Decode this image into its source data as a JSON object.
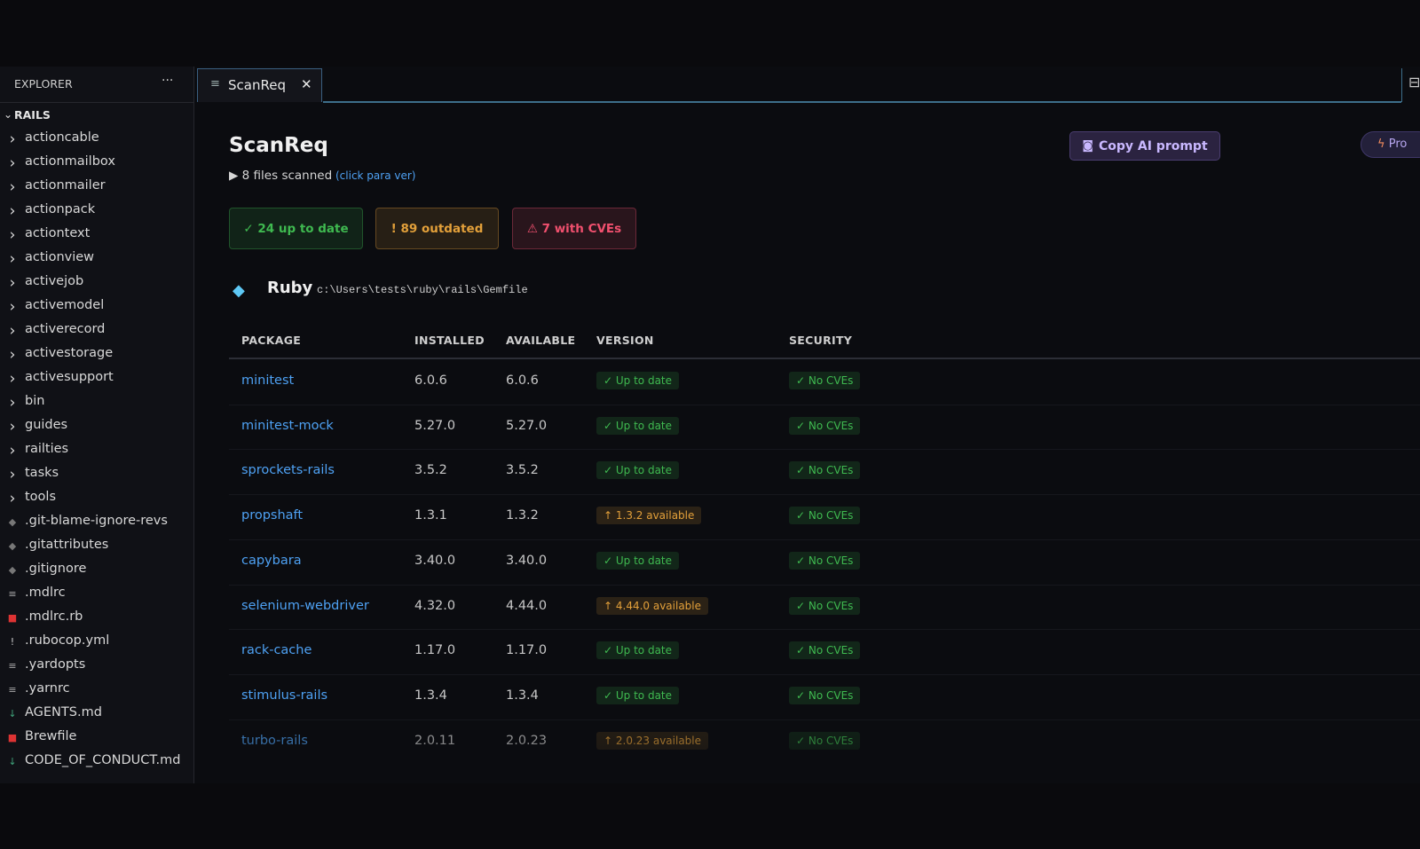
{
  "sidebar": {
    "title": "EXPLORER",
    "more": "···",
    "root": "RAILS",
    "items": [
      "actioncable",
      "actionmailbox",
      "actionmailer",
      "actionpack",
      "actiontext",
      "actionview",
      "activejob",
      "activemodel",
      "activerecord",
      "activestorage",
      "activesupport",
      "bin",
      "guides",
      "railties",
      "tasks",
      "tools",
      ".git-blame-ignore-revs",
      ".gitattributes",
      ".gitignore",
      ".mdlrc",
      ".mdlrc.rb",
      ".rubocop.yml",
      ".yardopts",
      ".yarnrc",
      "AGENTS.md",
      "Brewfile",
      "CODE_OF_CONDUCT.md"
    ]
  },
  "tab": {
    "label": "ScanReq",
    "close": "✕"
  },
  "header": {
    "title": "ScanReq",
    "scanned": "▶ 8 files scanned",
    "link": "(click para ver)",
    "copy_button": "Copy AI prompt",
    "pro_button": "Pro"
  },
  "summary": [
    {
      "label": "✓ 24 up to date",
      "color": "#3fb950"
    },
    {
      "label": "! 89 outdated",
      "color": "#e3a03a"
    },
    {
      "label": "⚠ 7 with CVEs",
      "color": "#f0506e"
    }
  ],
  "section": {
    "title": "Ruby",
    "path": "c:\\Users\\tests\\ruby\\rails\\Gemfile"
  },
  "table": {
    "columns": [
      "PACKAGE",
      "INSTALLED",
      "AVAILABLE",
      "VERSION",
      "SECURITY"
    ],
    "rows": [
      [
        "minitest",
        "6.0.6",
        "6.0.6",
        {
          "label": "✓ Up to date",
          "color": "#3fb950"
        },
        {
          "label": "✓ No CVEs",
          "color": "#3fb950"
        }
      ],
      [
        "minitest-mock",
        "5.27.0",
        "5.27.0",
        {
          "label": "✓ Up to date",
          "color": "#3fb950"
        },
        {
          "label": "✓ No CVEs",
          "color": "#3fb950"
        }
      ],
      [
        "sprockets-rails",
        "3.5.2",
        "3.5.2",
        {
          "label": "✓ Up to date",
          "color": "#3fb950"
        },
        {
          "label": "✓ No CVEs",
          "color": "#3fb950"
        }
      ],
      [
        "propshaft",
        "1.3.1",
        "1.3.2",
        {
          "label": "↑ 1.3.2 available",
          "color": "#e3a03a"
        },
        {
          "label": "✓ No CVEs",
          "color": "#3fb950"
        }
      ],
      [
        "capybara",
        "3.40.0",
        "3.40.0",
        {
          "label": "✓ Up to date",
          "color": "#3fb950"
        },
        {
          "label": "✓ No CVEs",
          "color": "#3fb950"
        }
      ],
      [
        "selenium-webdriver",
        "4.32.0",
        "4.44.0",
        {
          "label": "↑ 4.44.0 available",
          "color": "#e3a03a"
        },
        {
          "label": "✓ No CVEs",
          "color": "#3fb950"
        }
      ],
      [
        "rack-cache",
        "1.17.0",
        "1.17.0",
        {
          "label": "✓ Up to date",
          "color": "#3fb950"
        },
        {
          "label": "✓ No CVEs",
          "color": "#3fb950"
        }
      ],
      [
        "stimulus-rails",
        "1.3.4",
        "1.3.4",
        {
          "label": "✓ Up to date",
          "color": "#3fb950"
        },
        {
          "label": "✓ No CVEs",
          "color": "#3fb950"
        }
      ],
      [
        "turbo-rails",
        "2.0.11",
        "2.0.23",
        {
          "label": "↑ 2.0.23 available",
          "color": "#e3a03a"
        },
        {
          "label": "✓ No CVEs",
          "color": "#3fb950"
        }
      ]
    ]
  }
}
